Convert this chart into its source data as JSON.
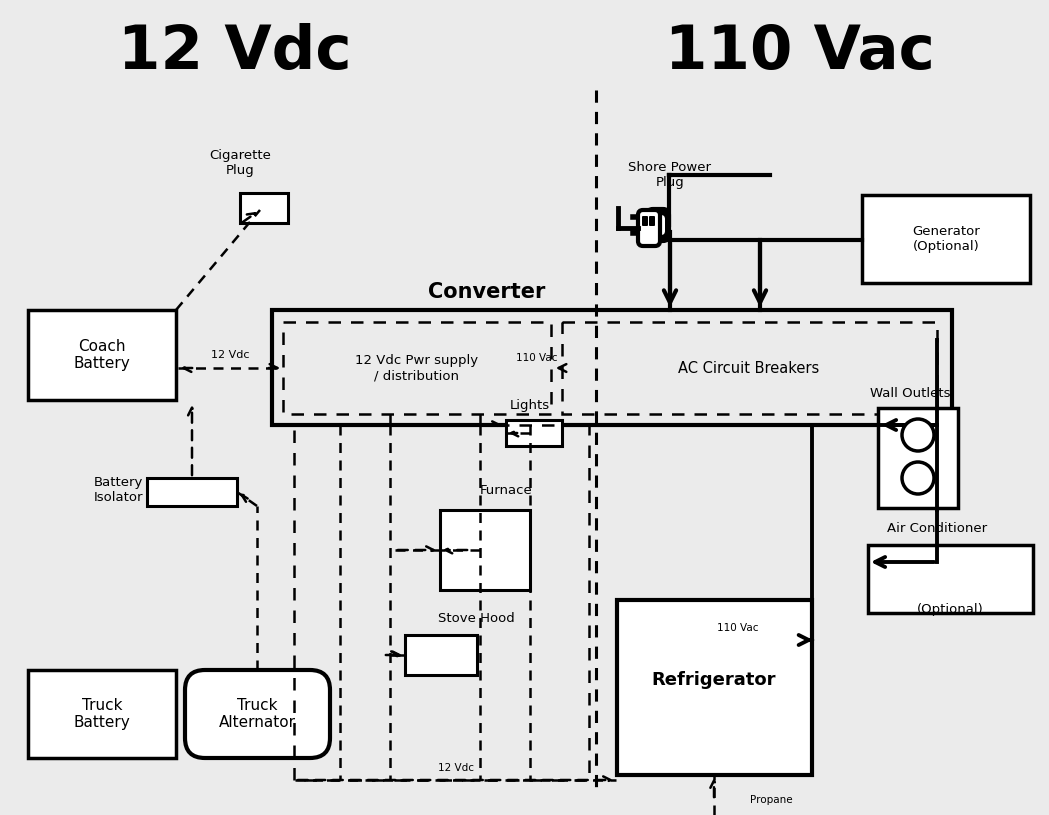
{
  "bg_color": "#ebebeb",
  "title_12vdc": "12 Vdc",
  "title_110vac": "110 Vac",
  "converter_label": "Converter",
  "pwr_supply_label": "12 Vdc Pwr supply\n/ distribution",
  "ac_breakers_label": "AC Circuit Breakers",
  "coach_battery_label": "Coach\nBattery",
  "cigarette_plug_label": "Cigarette\nPlug",
  "battery_isolator_label": "Battery\nIsolator",
  "truck_battery_label": "Truck\nBattery",
  "truck_alternator_label": "Truck\nAlternator",
  "shore_power_label": "Shore Power\nPlug",
  "generator_label": "Generator\n(Optional)",
  "wall_outlets_label": "Wall Outlets",
  "air_conditioner_label": "Air Conditioner",
  "ac_optional_label": "(Optional)",
  "lights_label": "Lights",
  "furnace_label": "Furnace",
  "stove_hood_label": "Stove Hood",
  "refrigerator_label": "Refrigerator",
  "propane_label": "Propane",
  "label_12vdc_small": "12 Vdc",
  "label_110vac_small": "110 Vac"
}
